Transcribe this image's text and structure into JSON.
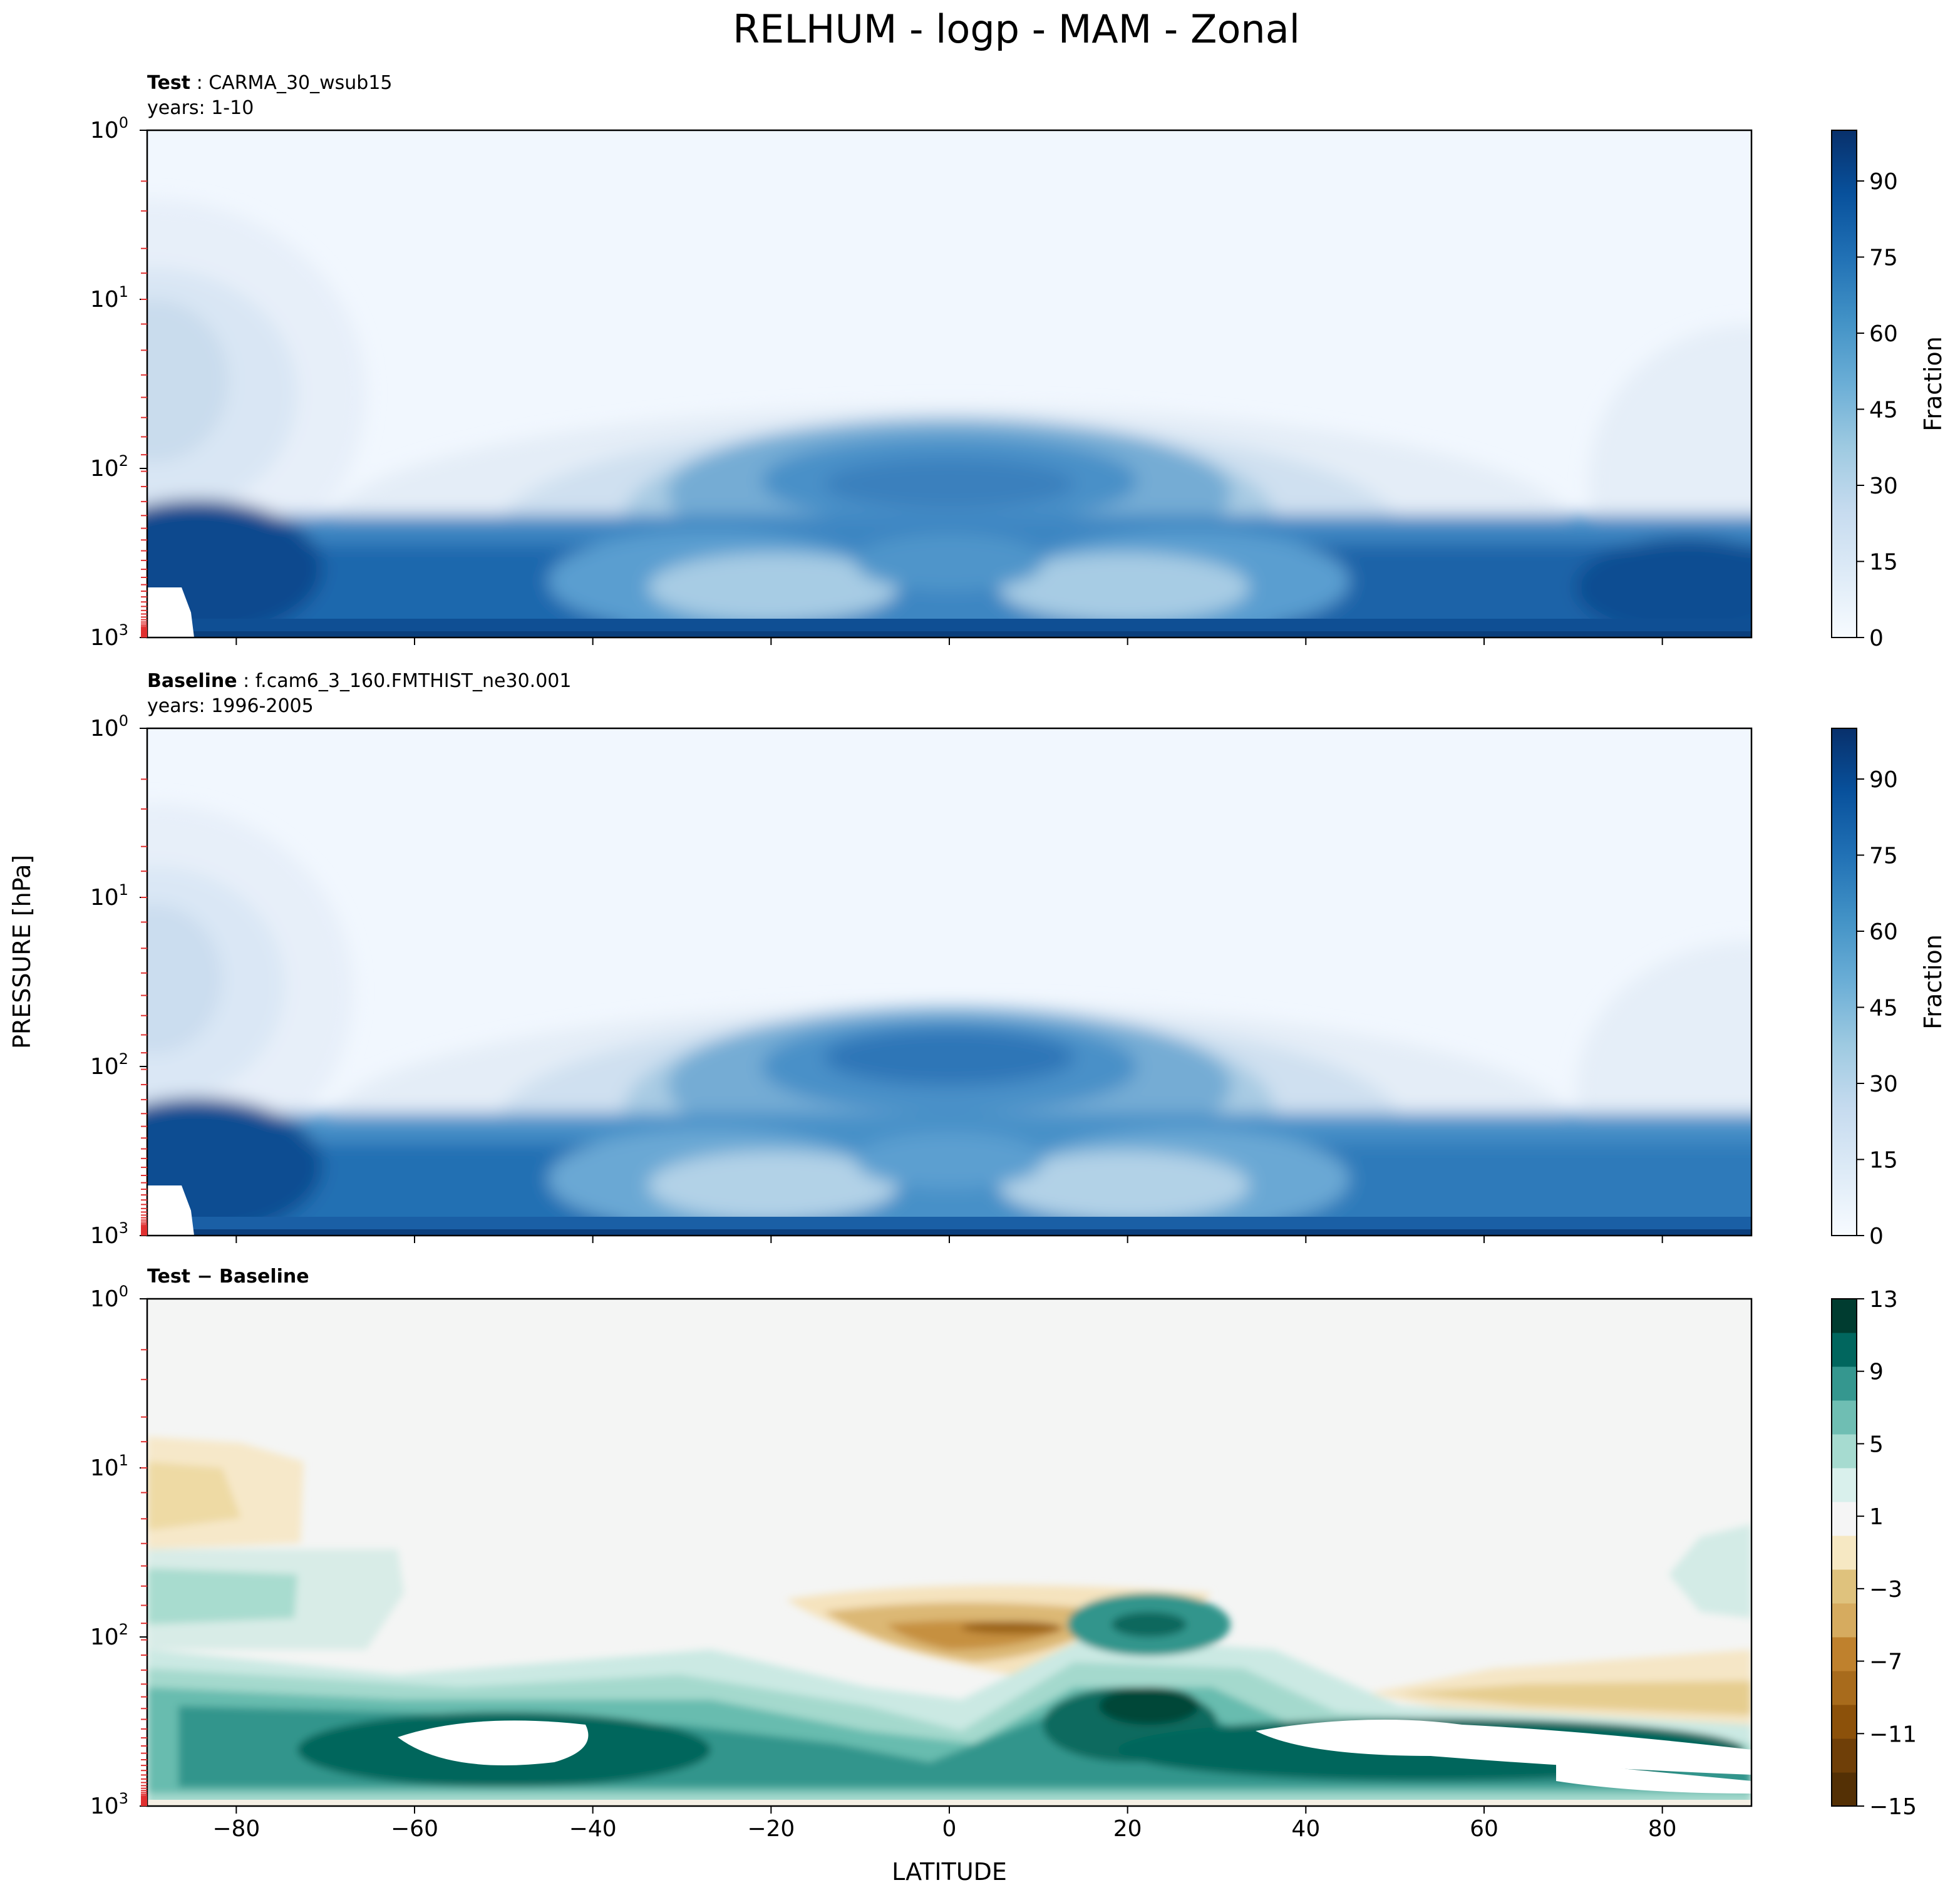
{
  "figure": {
    "title": "RELHUM - logp - MAM - Zonal",
    "ylabel": "PRESSURE [hPa]",
    "xlabel": "LATITUDE"
  },
  "chart_data": [
    {
      "type": "contour",
      "panel_label": "Test",
      "case": "CARMA_30_wsub15",
      "years": "years: 1-10",
      "xlim": [
        -90,
        90
      ],
      "x_ticks": [
        "−80",
        "−60",
        "−40",
        "−20",
        "0",
        "20",
        "40",
        "60",
        "80"
      ],
      "y_scale": "log",
      "ylim": [
        1000,
        1
      ],
      "y_ticks": [
        {
          "base": "10",
          "exp": "0"
        },
        {
          "base": "10",
          "exp": "1"
        },
        {
          "base": "10",
          "exp": "2"
        },
        {
          "base": "10",
          "exp": "3"
        }
      ],
      "colorbar_label": "Fraction",
      "colorbar_ticks": [
        "0",
        "15",
        "30",
        "45",
        "60",
        "75",
        "90"
      ],
      "colormap": "Blues",
      "levels": [
        0,
        5,
        10,
        15,
        20,
        25,
        30,
        35,
        40,
        45,
        50,
        55,
        60,
        65,
        70,
        75,
        80,
        85,
        90,
        95,
        100
      ],
      "features": [
        {
          "lat": -87,
          "p": 35,
          "value": 25
        },
        {
          "lat": 0,
          "p": 150,
          "value": 70
        },
        {
          "lat": -88,
          "p": 500,
          "value": 92
        },
        {
          "lat": 88,
          "p": 500,
          "value": 88
        },
        {
          "lat": -20,
          "p": 420,
          "value": 38
        },
        {
          "lat": 20,
          "p": 420,
          "value": 38
        }
      ]
    },
    {
      "type": "contour",
      "panel_label": "Baseline",
      "case": "f.cam6_3_160.FMTHIST_ne30.001",
      "years": "years: 1996-2005",
      "xlim": [
        -90,
        90
      ],
      "x_ticks": [
        "−80",
        "−60",
        "−40",
        "−20",
        "0",
        "20",
        "40",
        "60",
        "80"
      ],
      "y_scale": "log",
      "ylim": [
        1000,
        1
      ],
      "y_ticks": [
        {
          "base": "10",
          "exp": "0"
        },
        {
          "base": "10",
          "exp": "1"
        },
        {
          "base": "10",
          "exp": "2"
        },
        {
          "base": "10",
          "exp": "3"
        }
      ],
      "colorbar_label": "Fraction",
      "colorbar_ticks": [
        "0",
        "15",
        "30",
        "45",
        "60",
        "75",
        "90"
      ],
      "colormap": "Blues",
      "levels": [
        0,
        5,
        10,
        15,
        20,
        25,
        30,
        35,
        40,
        45,
        50,
        55,
        60,
        65,
        70,
        75,
        80,
        85,
        90,
        95,
        100
      ],
      "features": [
        {
          "lat": -87,
          "p": 35,
          "value": 22
        },
        {
          "lat": 0,
          "p": 120,
          "value": 72
        },
        {
          "lat": -88,
          "p": 500,
          "value": 90
        },
        {
          "lat": 85,
          "p": 500,
          "value": 75
        },
        {
          "lat": -20,
          "p": 420,
          "value": 35
        },
        {
          "lat": 20,
          "p": 420,
          "value": 35
        }
      ]
    },
    {
      "type": "contour",
      "panel_label": "Test − Baseline",
      "xlim": [
        -90,
        90
      ],
      "x_ticks": [
        "−80",
        "−60",
        "−40",
        "−20",
        "0",
        "20",
        "40",
        "60",
        "80"
      ],
      "y_scale": "log",
      "ylim": [
        1000,
        1
      ],
      "y_ticks": [
        {
          "base": "10",
          "exp": "0"
        },
        {
          "base": "10",
          "exp": "1"
        },
        {
          "base": "10",
          "exp": "2"
        },
        {
          "base": "10",
          "exp": "3"
        }
      ],
      "colorbar_ticks": [
        "13",
        "9",
        "5",
        "1",
        "−3",
        "−7",
        "−11",
        "−15"
      ],
      "colormap": "BrBG",
      "levels": [
        -15,
        -13,
        -11,
        -9,
        -7,
        -5,
        -3,
        -1,
        1,
        3,
        5,
        7,
        9,
        11,
        13
      ],
      "features": [
        {
          "lat": -83,
          "p": 12,
          "value": -3
        },
        {
          "lat": -82,
          "p": 40,
          "value": 4
        },
        {
          "lat": 2,
          "p": 90,
          "value": -9
        },
        {
          "lat": 22,
          "p": 200,
          "value": 11
        },
        {
          "lat": -45,
          "p": 550,
          "value": 15
        },
        {
          "lat": 55,
          "p": 550,
          "value": 15
        },
        {
          "lat": 75,
          "p": 230,
          "value": -5
        }
      ]
    }
  ]
}
